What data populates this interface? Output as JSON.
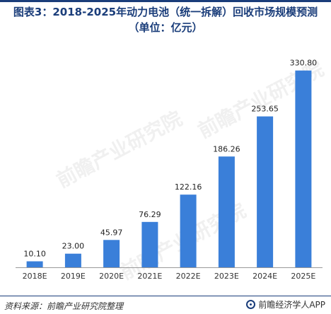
{
  "title": {
    "line1": "图表3：2018-2025年动力电池（统一拆解）回收市场规模预测",
    "line2": "（单位：亿元）"
  },
  "chart_data": {
    "type": "bar",
    "categories": [
      "2018E",
      "2019E",
      "2020E",
      "2021E",
      "2022E",
      "2023E",
      "2024E",
      "2025E"
    ],
    "values": [
      10.1,
      23.0,
      45.97,
      76.29,
      122.16,
      186.26,
      253.65,
      330.8
    ],
    "value_labels": [
      "10.10",
      "23.00",
      "45.97",
      "76.29",
      "122.16",
      "186.26",
      "253.65",
      "330.80"
    ],
    "title": "图表3：2018-2025年动力电池（统一拆解）回收市场规模预测",
    "unit": "（单位：亿元）",
    "xlabel": "",
    "ylabel": "",
    "ylim": [
      0,
      340
    ],
    "grid": false,
    "legend": "none"
  },
  "colors": {
    "bar": "#3a7fd9",
    "title": "#1a3d7a",
    "axis": "#999999"
  },
  "footer": {
    "source": "资料来源：前瞻产业研究院整理",
    "brand": "前瞻经济学人APP"
  },
  "watermark": "前瞻产业研究院"
}
